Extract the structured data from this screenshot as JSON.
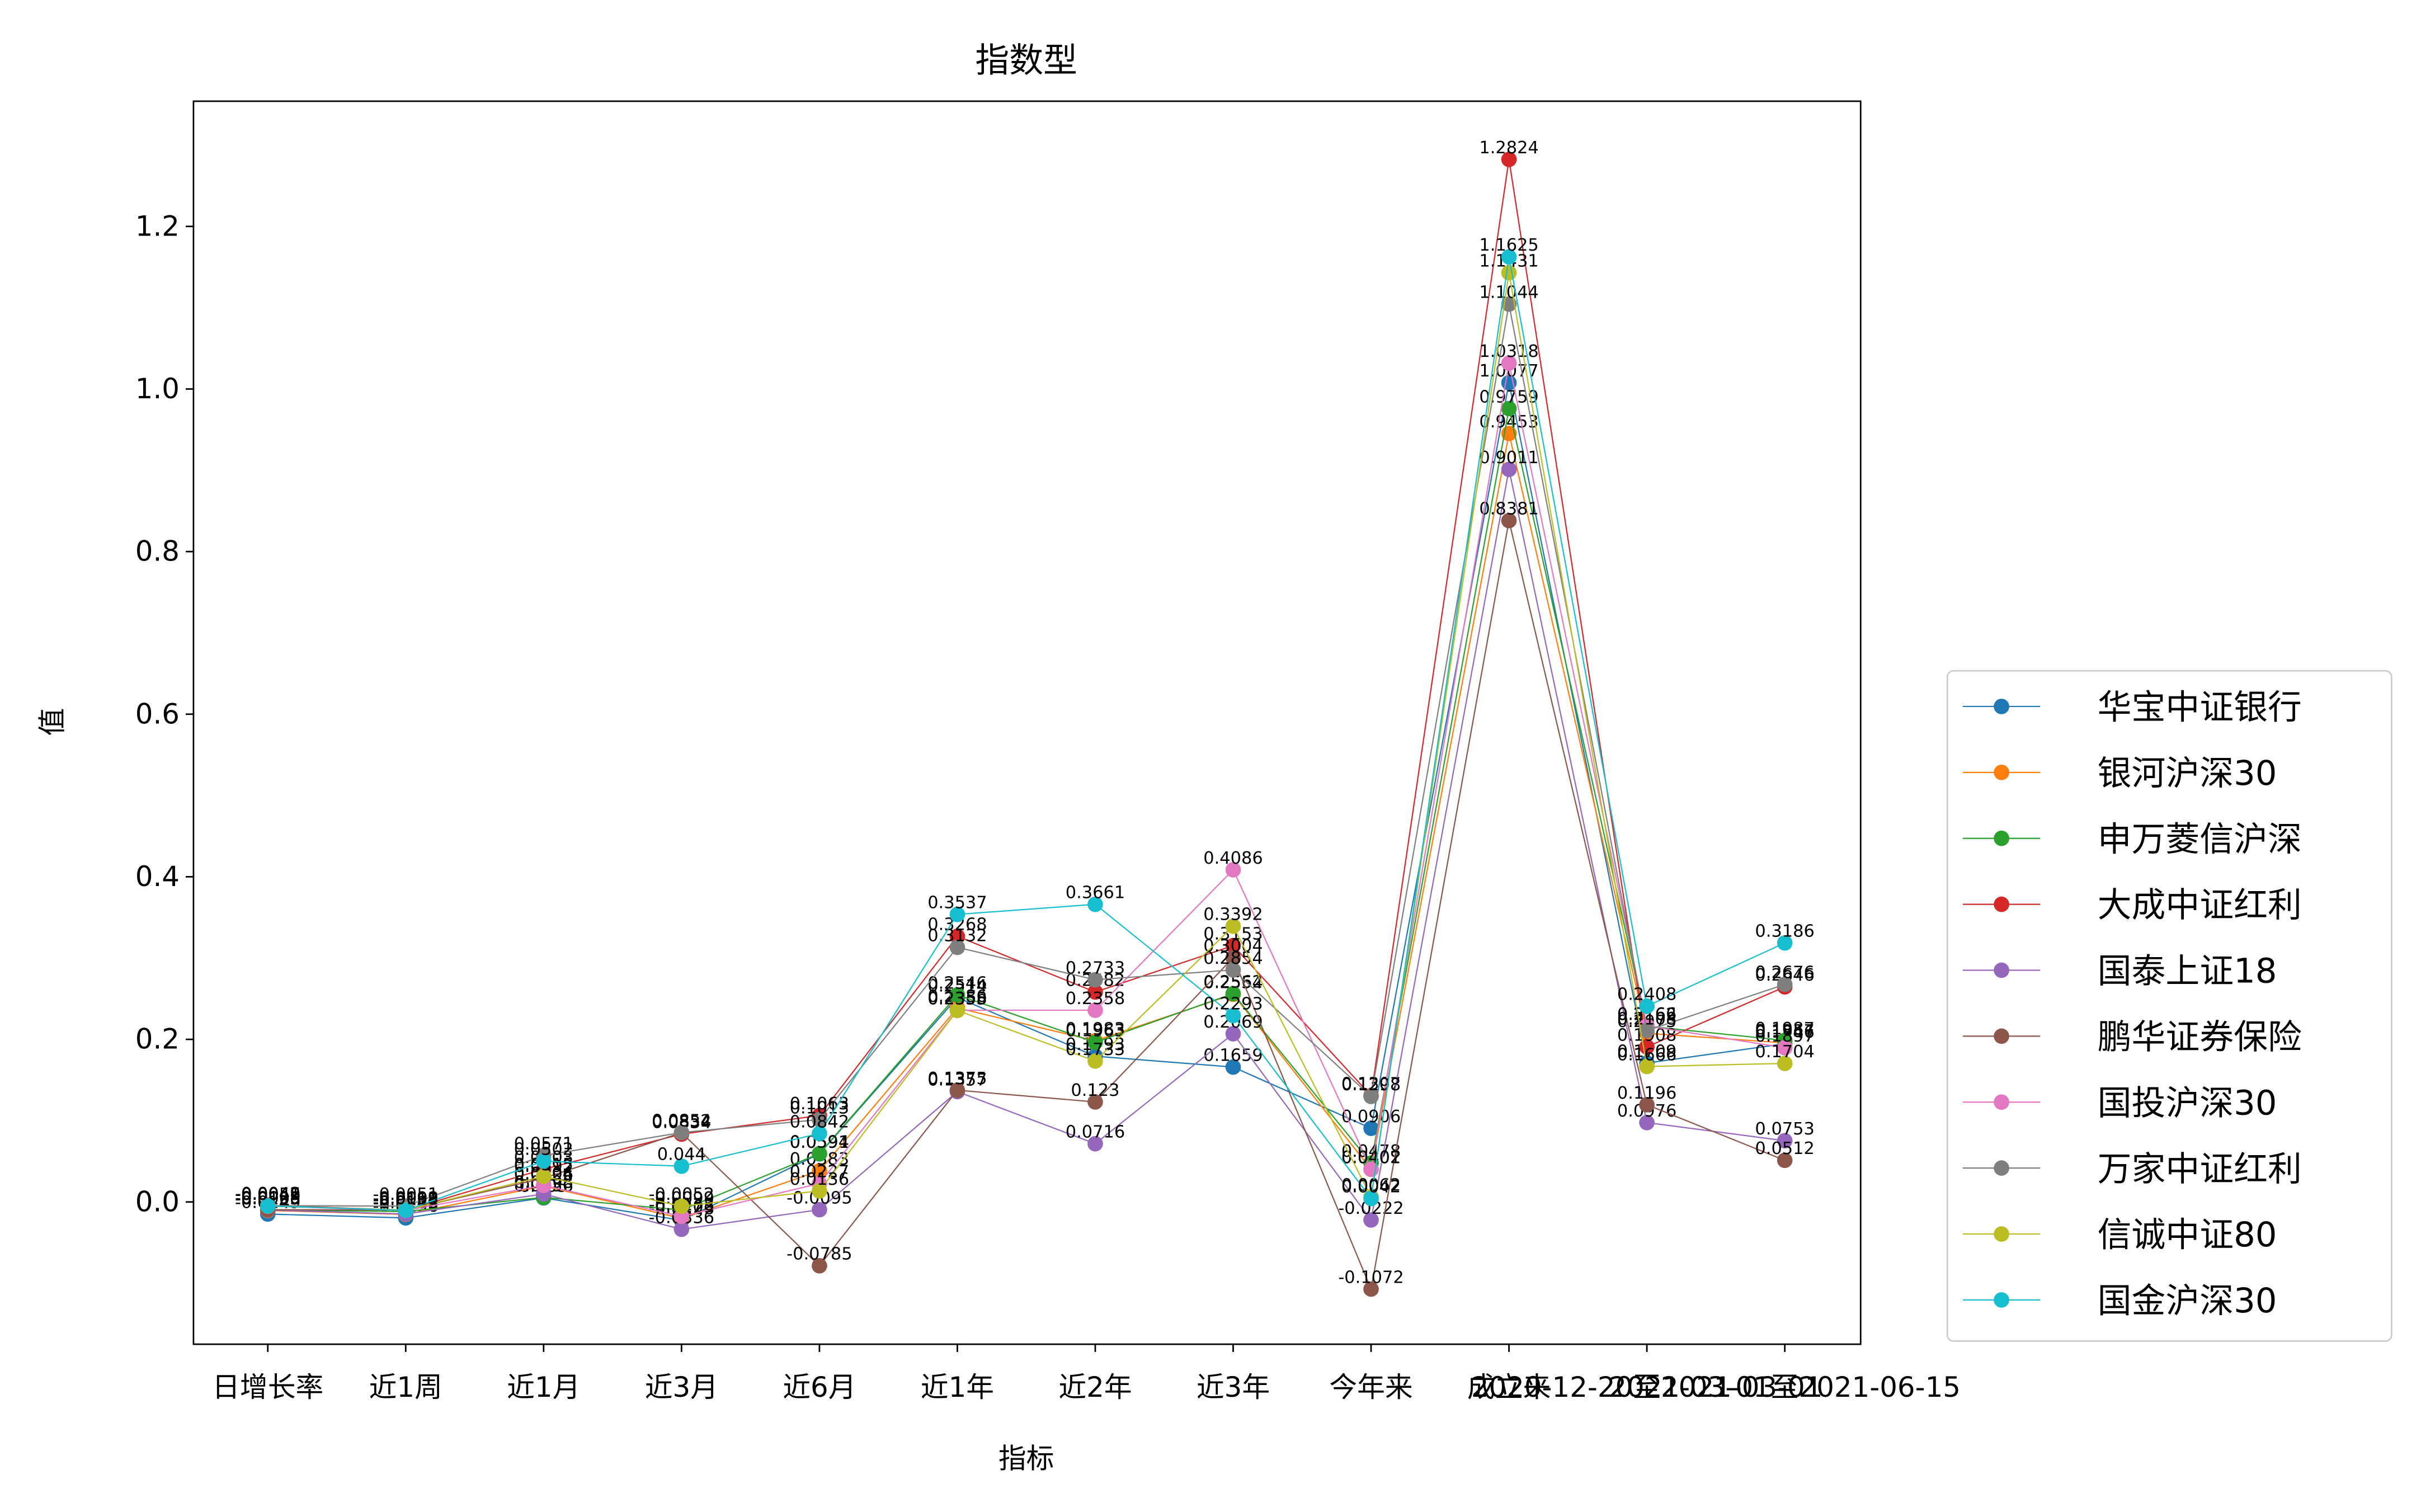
{
  "chart_data": {
    "type": "line",
    "title": "指数型",
    "xlabel": "指标",
    "ylabel": "值",
    "categories": [
      "日增长率",
      "近1周",
      "近1月",
      "近3月",
      "近6月",
      "近1年",
      "近2年",
      "近3年",
      "今年来",
      "成立来",
      "2020-12-20至2021-03-01",
      "2021-03-01至2021-06-15"
    ],
    "ylim": [
      -0.175,
      1.354
    ],
    "yticks": [
      {
        "value": 0,
        "label": "0.0"
      },
      {
        "value": 0.2,
        "label": "0.2"
      },
      {
        "value": 0.4,
        "label": "0.4"
      },
      {
        "value": 0.6,
        "label": "0.6"
      },
      {
        "value": 0.8,
        "label": "0.8"
      },
      {
        "value": 1.0,
        "label": "1.0"
      },
      {
        "value": 1.2,
        "label": "1.2"
      }
    ],
    "grid": false,
    "legend": "right",
    "series": [
      {
        "name": "华宝中证银行",
        "color": "#1f77b4",
        "values": [
          -0.0149,
          -0.0196,
          0.005,
          -0.0226,
          0.0591,
          0.2514,
          0.1793,
          0.1659,
          0.0906,
          1.0077,
          0.1709,
          0.1946
        ]
      },
      {
        "name": "银河沪深30",
        "color": "#ff7f0e",
        "values": [
          -0.0105,
          -0.0153,
          0.0196,
          -0.0203,
          0.0383,
          0.2386,
          0.1983,
          0.2554,
          0.0401,
          0.9453,
          0.2075,
          0.1957
        ]
      },
      {
        "name": "申万菱信沪深",
        "color": "#2ca02c",
        "values": [
          -0.0098,
          -0.0117,
          0.0056,
          -0.0099,
          0.0594,
          0.2546,
          0.1963,
          0.2562,
          0.0478,
          0.9759,
          0.2162,
          0.1987
        ]
      },
      {
        "name": "大成中证红利",
        "color": "#d62728",
        "values": [
          -0.0042,
          -0.0101,
          0.0403,
          0.0834,
          0.1063,
          0.3268,
          0.2582,
          0.3153,
          0.1307,
          1.2824,
          0.1908,
          0.2646
        ]
      },
      {
        "name": "国泰上证18",
        "color": "#9467bd",
        "values": [
          -0.0099,
          -0.0148,
          0.0098,
          -0.0336,
          -0.0095,
          0.1357,
          0.0716,
          0.2069,
          -0.0222,
          0.9011,
          0.0976,
          0.0753
        ]
      },
      {
        "name": "鹏华证券保险",
        "color": "#8c564b",
        "values": [
          -0.0095,
          -0.0098,
          0.0292,
          0.0852,
          -0.0785,
          0.1375,
          0.123,
          0.3004,
          -0.1072,
          0.8381,
          0.1196,
          0.0512
        ]
      },
      {
        "name": "国投沪深30",
        "color": "#e377c2",
        "values": [
          -0.0052,
          -0.0104,
          0.0204,
          -0.0178,
          0.0227,
          0.2358,
          0.2358,
          0.4086,
          0.0402,
          1.0318,
          0.2166,
          0.1897
        ]
      },
      {
        "name": "万家中证红利",
        "color": "#7f7f7f",
        "values": [
          -0.0046,
          -0.0051,
          0.0571,
          0.0854,
          0.1013,
          0.3132,
          0.2733,
          0.2854,
          0.1298,
          1.1044,
          0.2108,
          0.2676
        ]
      },
      {
        "name": "信诚中证80",
        "color": "#bcbd22",
        "values": [
          -0.0051,
          -0.0099,
          0.0315,
          -0.0052,
          0.0136,
          0.2355,
          0.1733,
          0.3392,
          0.0062,
          1.1431,
          0.1666,
          0.1704
        ]
      },
      {
        "name": "国金沪深30",
        "color": "#17becf",
        "values": [
          -0.0049,
          -0.0103,
          0.0502,
          0.044,
          0.0842,
          0.3537,
          0.3661,
          0.2293,
          0.0042,
          1.1625,
          0.2408,
          0.3186
        ]
      }
    ]
  }
}
